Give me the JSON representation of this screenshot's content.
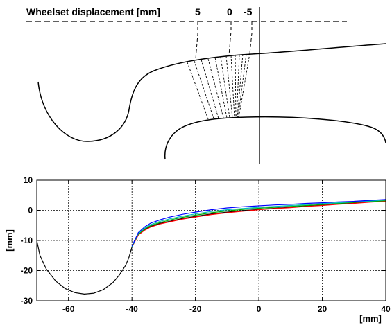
{
  "diagram": {
    "heading": "Wheelset displacement [mm]",
    "displacement_labels": [
      "5",
      "0",
      "-5"
    ]
  },
  "chart_data": {
    "type": "line",
    "title": "",
    "xlabel": "[mm]",
    "ylabel": "[mm]",
    "xlim": [
      -70,
      40
    ],
    "ylim": [
      -30,
      10
    ],
    "xticks": [
      -60,
      -40,
      -20,
      0,
      20,
      40
    ],
    "yticks": [
      10,
      0,
      -10,
      -20,
      -30
    ],
    "grid": true,
    "series": [
      {
        "color": "#000000",
        "x": [
          -70,
          -69,
          -67,
          -64,
          -61,
          -58,
          -55,
          -52,
          -49,
          -46,
          -44,
          -42,
          -41,
          -40,
          -39,
          -38,
          -36,
          -34,
          -31,
          -28,
          -24,
          -20,
          -15,
          -10,
          -5,
          0,
          5,
          10,
          15,
          20,
          25,
          30,
          35,
          40
        ],
        "y": [
          -10,
          -15,
          -19.5,
          -23.5,
          -26,
          -27.3,
          -27.8,
          -27.5,
          -26.3,
          -24,
          -21.5,
          -18.3,
          -15.8,
          -12.2,
          -9.6,
          -8,
          -6.4,
          -5.3,
          -4.3,
          -3.6,
          -2.7,
          -2,
          -1.2,
          -0.6,
          -0.1,
          0.3,
          0.7,
          1,
          1.4,
          1.7,
          2.1,
          2.4,
          2.8,
          3.1
        ]
      },
      {
        "color": "#ff0000",
        "x": [
          -40,
          -38,
          -36,
          -34,
          -31,
          -28,
          -24,
          -20,
          -15,
          -10,
          -5,
          0,
          5,
          10,
          15,
          20,
          25,
          30,
          35,
          40
        ],
        "y": [
          -12.2,
          -8.2,
          -6.6,
          -5.5,
          -4.5,
          -3.8,
          -2.9,
          -2.2,
          -1.4,
          -0.8,
          -0.3,
          0.2,
          0.6,
          0.9,
          1.3,
          1.6,
          2,
          2.3,
          2.7,
          3
        ]
      },
      {
        "color": "#00aa00",
        "x": [
          -40,
          -38,
          -36,
          -34,
          -31,
          -28,
          -24,
          -20,
          -15,
          -10,
          -5,
          0,
          5,
          10,
          15,
          20,
          25,
          30,
          35,
          40
        ],
        "y": [
          -12.1,
          -7.9,
          -6.2,
          -5.0,
          -4.0,
          -3.2,
          -2.3,
          -1.6,
          -0.8,
          -0.2,
          0.3,
          0.7,
          1.0,
          1.3,
          1.6,
          1.9,
          2.3,
          2.6,
          2.9,
          3.2
        ]
      },
      {
        "color": "#00bbbb",
        "x": [
          -40,
          -38,
          -36,
          -34,
          -31,
          -28,
          -24,
          -20,
          -15,
          -10,
          -5,
          0,
          5,
          10,
          15,
          20,
          25,
          30,
          35,
          40
        ],
        "y": [
          -12.0,
          -7.7,
          -5.9,
          -4.7,
          -3.6,
          -2.8,
          -1.9,
          -1.2,
          -0.4,
          0.2,
          0.6,
          1.0,
          1.3,
          1.6,
          1.9,
          2.2,
          2.5,
          2.8,
          3.1,
          3.4
        ]
      },
      {
        "color": "#0000ff",
        "x": [
          -40,
          -38,
          -36,
          -34,
          -31,
          -28,
          -24,
          -20,
          -15,
          -10,
          -5,
          0,
          5,
          10,
          15,
          20,
          25,
          30,
          35,
          40
        ],
        "y": [
          -11.9,
          -7.4,
          -5.5,
          -4.2,
          -3.1,
          -2.2,
          -1.3,
          -0.6,
          0.2,
          0.8,
          1.2,
          1.5,
          1.8,
          2.0,
          2.3,
          2.5,
          2.8,
          3.0,
          3.3,
          3.6
        ]
      }
    ]
  }
}
